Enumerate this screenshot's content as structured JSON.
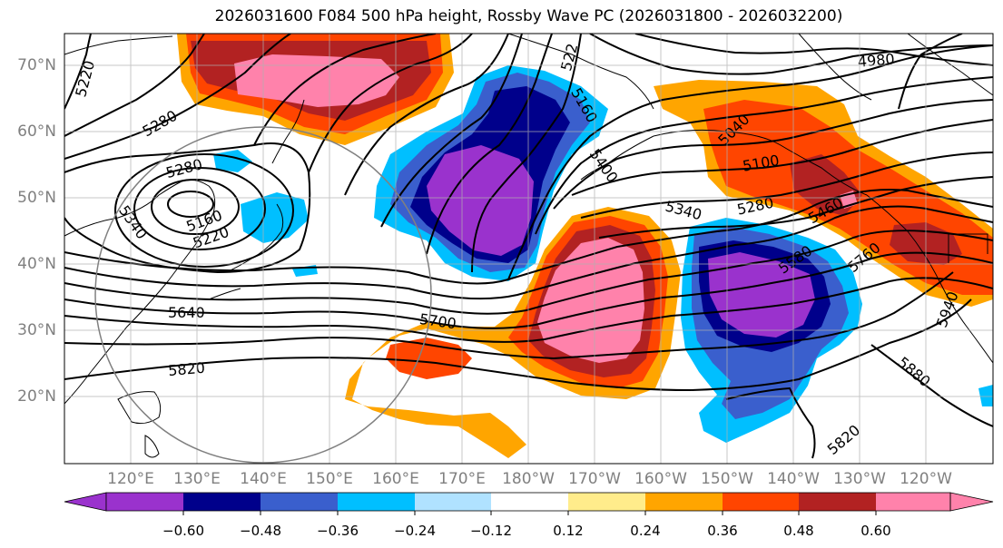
{
  "title": "2026031600 F084 500 hPa height, Rossby Wave PC (2026031800 - 2026032200)",
  "lat_labels": [
    "70°N",
    "60°N",
    "50°N",
    "40°N",
    "30°N",
    "20°N"
  ],
  "lon_labels": [
    "120°E",
    "130°E",
    "140°E",
    "150°E",
    "160°E",
    "170°E",
    "180°W",
    "170°W",
    "160°W",
    "150°W",
    "140°W",
    "130°W",
    "120°W"
  ],
  "contour_labels": [
    "5220",
    "5280",
    "5280",
    "5340",
    "5160",
    "5220",
    "5640",
    "5820",
    "5700",
    "522",
    "5160",
    "5400",
    "5340",
    "5280",
    "5100",
    "5040",
    "5460",
    "5580",
    "5760",
    "4980",
    "5940",
    "5880",
    "5820"
  ],
  "colorbar": {
    "tick_labels": [
      "−0.60",
      "−0.48",
      "−0.36",
      "−0.24",
      "−0.12",
      "0.12",
      "0.24",
      "0.36",
      "0.48",
      "0.60"
    ],
    "colors": [
      "#9a32cd",
      "#00008b",
      "#3a5fcd",
      "#00bfff",
      "#b0e2ff",
      "#ffffff",
      "#ffec8b",
      "#ffa500",
      "#ff4500",
      "#b22222",
      "#ff82ab"
    ]
  },
  "colors": {
    "strong_negative": "#9a32cd",
    "negative": "#00008b",
    "moderate_negative": "#3a5fcd",
    "weak_negative": "#00bfff",
    "faint_negative": "#b0e2ff",
    "faint_positive": "#ffec8b",
    "weak_positive": "#ffa500",
    "moderate_positive": "#ff4500",
    "positive": "#b22222",
    "strong_positive": "#ff82ab"
  }
}
